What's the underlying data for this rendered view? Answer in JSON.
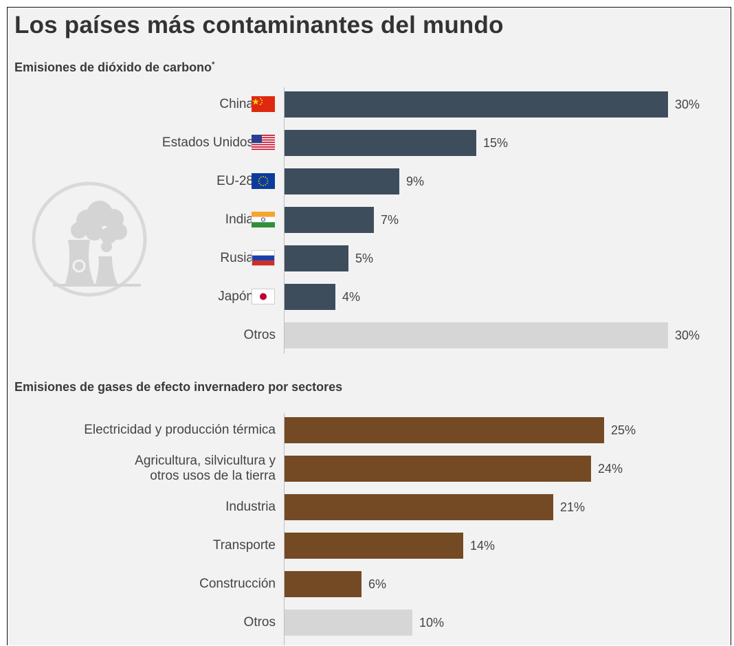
{
  "title": "Los países más contaminantes del mundo",
  "colors": {
    "co2_bar": "#3d4d5c",
    "sector_bar": "#734a24",
    "other_bar": "#d6d6d6"
  },
  "icon": "factory-pollution-icon",
  "chart_data": [
    {
      "type": "bar",
      "orientation": "horizontal",
      "title": "Emisiones de dióxido de carbono",
      "title_marker": "*",
      "unit": "%",
      "xlim": [
        0,
        30
      ],
      "categories": [
        "China",
        "Estados Unidos",
        "EU-28",
        "India",
        "Rusia",
        "Japón",
        "Otros"
      ],
      "values": [
        30,
        15,
        9,
        7,
        5,
        4,
        30
      ],
      "value_labels": [
        "30%",
        "15%",
        "9%",
        "7%",
        "5%",
        "4%",
        "30%"
      ],
      "flags": [
        "china-flag-icon",
        "usa-flag-icon",
        "eu-flag-icon",
        "india-flag-icon",
        "russia-flag-icon",
        "japan-flag-icon",
        ""
      ],
      "highlight_last_gray": true
    },
    {
      "type": "bar",
      "orientation": "horizontal",
      "title": "Emisiones de gases de efecto invernadero por sectores",
      "unit": "%",
      "xlim": [
        0,
        30
      ],
      "categories": [
        "Electricidad y producción térmica",
        "Agricultura, silvicultura y\notros usos de la tierra",
        "Industria",
        "Transporte",
        "Construcción",
        "Otros"
      ],
      "values": [
        25,
        24,
        21,
        14,
        6,
        10
      ],
      "value_labels": [
        "25%",
        "24%",
        "21%",
        "14%",
        "6%",
        "10%"
      ],
      "highlight_last_gray": true
    }
  ]
}
